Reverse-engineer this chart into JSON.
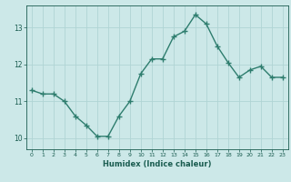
{
  "x": [
    0,
    1,
    2,
    3,
    4,
    5,
    6,
    7,
    8,
    9,
    10,
    11,
    12,
    13,
    14,
    15,
    16,
    17,
    18,
    19,
    20,
    21,
    22,
    23
  ],
  "y": [
    11.3,
    11.2,
    11.2,
    11.0,
    10.6,
    10.35,
    10.05,
    10.05,
    10.6,
    11.0,
    11.75,
    12.15,
    12.15,
    12.75,
    12.9,
    13.35,
    13.1,
    12.5,
    12.05,
    11.65,
    11.85,
    11.95,
    11.65,
    11.65
  ],
  "xlabel": "Humidex (Indice chaleur)",
  "line_color": "#2e7d6e",
  "bg_color": "#cce8e8",
  "grid_color": "#b0d4d4",
  "text_color": "#1a5c50",
  "ylim": [
    9.7,
    13.6
  ],
  "yticks": [
    10,
    11,
    12,
    13
  ],
  "xticks": [
    0,
    1,
    2,
    3,
    4,
    5,
    6,
    7,
    8,
    9,
    10,
    11,
    12,
    13,
    14,
    15,
    16,
    17,
    18,
    19,
    20,
    21,
    22,
    23
  ],
  "marker_size": 2.5,
  "line_width": 1.0
}
